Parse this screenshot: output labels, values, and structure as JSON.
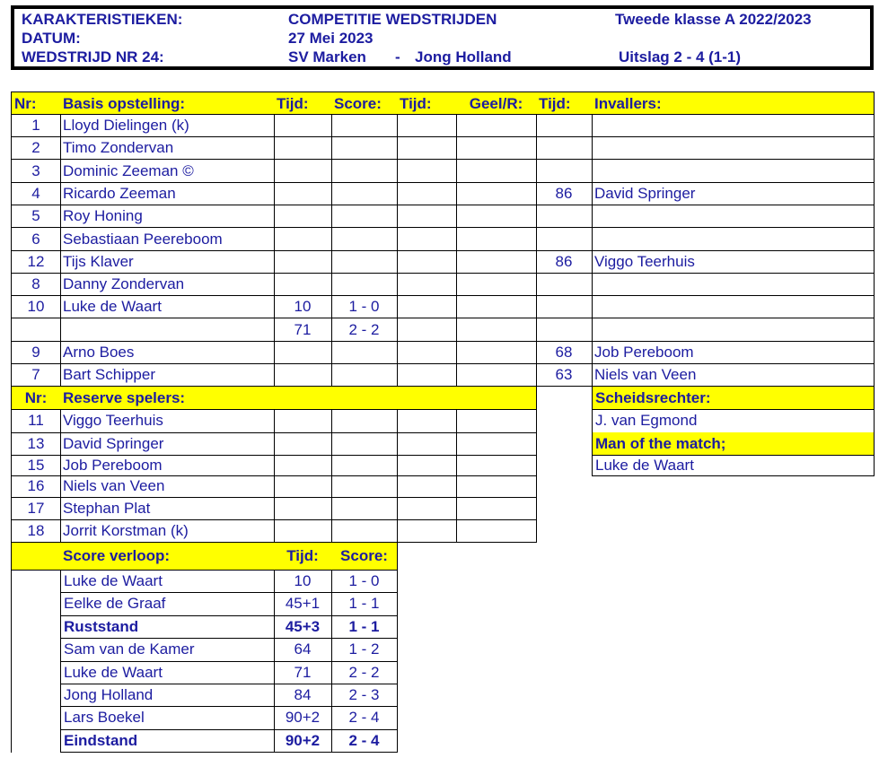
{
  "header": {
    "label1": "KARAKTERISTIEKEN:",
    "label2": "DATUM:",
    "label3": "WEDSTRIJD NR 24:",
    "competition": "COMPETITIE WEDSTRIJDEN",
    "date": "27 Mei 2023",
    "home": "SV Marken",
    "sep": "-",
    "away": "Jong Holland",
    "league": "Tweede klasse A  2022/2023",
    "result": "Uitslag 2 - 4 (1-1)"
  },
  "colors": {
    "header_fill": "#ffff00",
    "text": "#1c1ca0"
  },
  "lineup": {
    "headers": [
      "Nr:",
      "Basis opstelling:",
      "Tijd:",
      "Score:",
      "Tijd:",
      "Geel/R:",
      "Tijd:",
      "Invallers:"
    ],
    "rows": [
      [
        "1",
        "Lloyd Dielingen (k)",
        "",
        "",
        "",
        "",
        "",
        ""
      ],
      [
        "2",
        "Timo Zondervan",
        "",
        "",
        "",
        "",
        "",
        ""
      ],
      [
        "3",
        "Dominic Zeeman ©",
        "",
        "",
        "",
        "",
        "",
        ""
      ],
      [
        "4",
        "Ricardo Zeeman",
        "",
        "",
        "",
        "",
        "86",
        "David Springer"
      ],
      [
        "5",
        "Roy Honing",
        "",
        "",
        "",
        "",
        "",
        ""
      ],
      [
        "6",
        "Sebastiaan Peereboom",
        "",
        "",
        "",
        "",
        "",
        ""
      ],
      [
        "12",
        "Tijs Klaver",
        "",
        "",
        "",
        "",
        "86",
        "Viggo Teerhuis"
      ],
      [
        "8",
        "Danny Zondervan",
        "",
        "",
        "",
        "",
        "",
        ""
      ],
      [
        "10",
        "Luke de Waart",
        "10",
        "1 - 0",
        "",
        "",
        "",
        ""
      ],
      [
        "",
        "",
        "71",
        "2 - 2",
        "",
        "",
        "",
        ""
      ],
      [
        "9",
        "Arno Boes",
        "",
        "",
        "",
        "",
        "68",
        "Job Pereboom"
      ],
      [
        "7",
        "Bart Schipper",
        "",
        "",
        "",
        "",
        "63",
        "Niels van Veen"
      ]
    ]
  },
  "reserves": {
    "headers": [
      "Nr:",
      "Reserve spelers:",
      "",
      "",
      "",
      ""
    ],
    "rows": [
      [
        "11",
        "Viggo Teerhuis"
      ],
      [
        "13",
        "David Springer"
      ],
      [
        "15",
        "Job Pereboom"
      ],
      [
        "16",
        "Niels van Veen"
      ],
      [
        "17",
        "Stephan Plat"
      ],
      [
        "18",
        "Jorrit Korstman (k)"
      ]
    ]
  },
  "officials": {
    "referee_label": "Scheidsrechter:",
    "referee": "J. van Egmond",
    "motm_label": "Man of the match;",
    "motm": " Luke de Waart"
  },
  "score_progress": {
    "headers": [
      "",
      "Score verloop:",
      "Tijd:",
      "Score:"
    ],
    "rows": [
      {
        "name": "Luke de Waart",
        "time": "10",
        "score": "1 - 0",
        "bold": false
      },
      {
        "name": "Eelke de Graaf",
        "time": "45+1",
        "score": "1 - 1",
        "bold": false
      },
      {
        "name": "Ruststand",
        "time": "45+3",
        "score": "1 - 1",
        "bold": true
      },
      {
        "name": "Sam van de Kamer",
        "time": "64",
        "score": "1 - 2",
        "bold": false
      },
      {
        "name": "Luke de Waart",
        "time": "71",
        "score": "2 - 2",
        "bold": false
      },
      {
        "name": "Jong Holland",
        "time": "84",
        "score": "2 - 3",
        "bold": false
      },
      {
        "name": "Lars Boekel",
        "time": "90+2",
        "score": "2 - 4",
        "bold": false
      },
      {
        "name": "Eindstand",
        "time": "90+2",
        "score": "2 - 4",
        "bold": true
      }
    ]
  }
}
